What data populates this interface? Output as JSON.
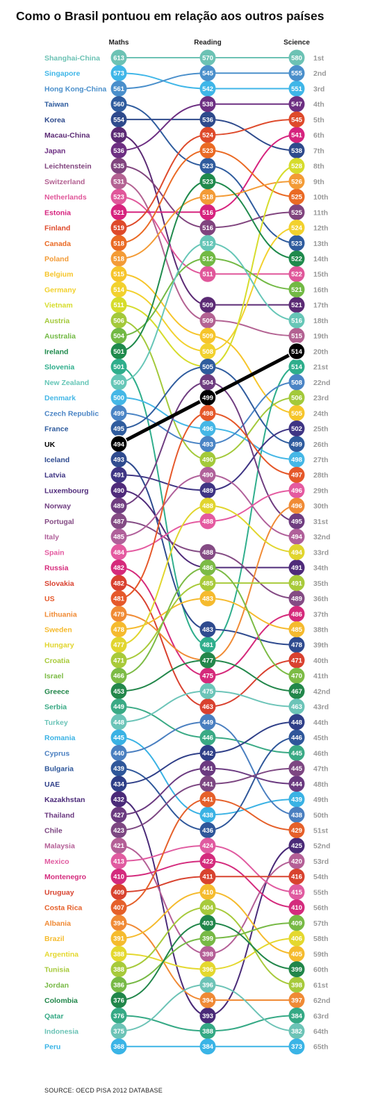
{
  "title": "Como o Brasil pontuou em relação aos outros países",
  "source": "SOURCE: OECD PISA 2012 DATABASE",
  "chart_data": {
    "type": "slope",
    "columns": [
      "Maths",
      "Reading",
      "Science"
    ],
    "highlight": "UK",
    "highlight_color": "#000000",
    "ranks": [
      "1st",
      "2nd",
      "3rd",
      "4th",
      "5th",
      "6th",
      "7th",
      "8th",
      "9th",
      "10th",
      "11th",
      "12th",
      "13th",
      "14th",
      "15th",
      "16th",
      "17th",
      "18th",
      "19th",
      "20th",
      "21st",
      "22nd",
      "23rd",
      "24th",
      "25th",
      "26th",
      "27th",
      "28th",
      "29th",
      "30th",
      "31st",
      "32nd",
      "33rd",
      "34th",
      "35th",
      "36th",
      "37th",
      "38th",
      "39th",
      "40th",
      "41th",
      "42nd",
      "43rd",
      "44th",
      "45th",
      "46th",
      "47th",
      "48th",
      "49th",
      "50th",
      "51st",
      "52nd",
      "53rd",
      "54th",
      "55th",
      "56th",
      "57th",
      "58th",
      "59th",
      "60th",
      "61st",
      "62nd",
      "63rd",
      "64th",
      "65th"
    ],
    "series": [
      {
        "name": "Shanghai-China",
        "color": "#6cc2b4",
        "maths": 613,
        "maths_rank": 1,
        "reading": 570,
        "reading_rank": 1,
        "science": 580,
        "science_rank": 1
      },
      {
        "name": "Singapore",
        "color": "#3fb6e8",
        "maths": 573,
        "maths_rank": 2,
        "reading": 542,
        "reading_rank": 3,
        "science": 551,
        "science_rank": 3
      },
      {
        "name": "Hong Kong-China",
        "color": "#4a8fcb",
        "maths": 561,
        "maths_rank": 3,
        "reading": 545,
        "reading_rank": 2,
        "science": 555,
        "science_rank": 2
      },
      {
        "name": "Taiwan",
        "color": "#2f5c9e",
        "maths": 560,
        "maths_rank": 4,
        "reading": 523,
        "reading_rank": 8,
        "science": 523,
        "science_rank": 13
      },
      {
        "name": "Korea",
        "color": "#2e4a8c",
        "maths": 554,
        "maths_rank": 5,
        "reading": 536,
        "reading_rank": 5,
        "science": 538,
        "science_rank": 7
      },
      {
        "name": "Macau-China",
        "color": "#5b2a74",
        "maths": 538,
        "maths_rank": 6,
        "reading": 509,
        "reading_rank": 17,
        "science": 521,
        "science_rank": 17
      },
      {
        "name": "Japan",
        "color": "#6d2f82",
        "maths": 536,
        "maths_rank": 7,
        "reading": 538,
        "reading_rank": 4,
        "science": 547,
        "science_rank": 4
      },
      {
        "name": "Leichtenstein",
        "color": "#80447e",
        "maths": 535,
        "maths_rank": 8,
        "reading": 516,
        "reading_rank": 12,
        "science": 525,
        "science_rank": 11
      },
      {
        "name": "Switzerland",
        "color": "#b36292",
        "maths": 531,
        "maths_rank": 9,
        "reading": 509,
        "reading_rank": 18,
        "science": 515,
        "science_rank": 19
      },
      {
        "name": "Netherlands",
        "color": "#e0579a",
        "maths": 523,
        "maths_rank": 10,
        "reading": 511,
        "reading_rank": 15,
        "science": 522,
        "science_rank": 15
      },
      {
        "name": "Estonia",
        "color": "#d6237e",
        "maths": 521,
        "maths_rank": 11,
        "reading": 516,
        "reading_rank": 11,
        "science": 541,
        "science_rank": 6
      },
      {
        "name": "Finland",
        "color": "#de4a2b",
        "maths": 519,
        "maths_rank": 12,
        "reading": 524,
        "reading_rank": 6,
        "science": 545,
        "science_rank": 5
      },
      {
        "name": "Canada",
        "color": "#ea6a24",
        "maths": 518,
        "maths_rank": 13,
        "reading": 523,
        "reading_rank": 7,
        "science": 525,
        "science_rank": 10
      },
      {
        "name": "Poland",
        "color": "#f39b36",
        "maths": 518,
        "maths_rank": 14,
        "reading": 518,
        "reading_rank": 10,
        "science": 526,
        "science_rank": 9
      },
      {
        "name": "Belgium",
        "color": "#f6c52b",
        "maths": 515,
        "maths_rank": 15,
        "reading": 509,
        "reading_rank": 19,
        "science": 505,
        "science_rank": 24
      },
      {
        "name": "Germany",
        "color": "#f2d12e",
        "maths": 514,
        "maths_rank": 16,
        "reading": 508,
        "reading_rank": 20,
        "science": 524,
        "science_rank": 12
      },
      {
        "name": "Vietnam",
        "color": "#d6dc2c",
        "maths": 511,
        "maths_rank": 17,
        "reading": 508,
        "reading_rank": 21,
        "science": 528,
        "science_rank": 8
      },
      {
        "name": "Austria",
        "color": "#a3c93a",
        "maths": 506,
        "maths_rank": 18,
        "reading": 490,
        "reading_rank": 27,
        "science": 506,
        "science_rank": 23
      },
      {
        "name": "Australia",
        "color": "#72b944",
        "maths": 504,
        "maths_rank": 19,
        "reading": 512,
        "reading_rank": 14,
        "science": 521,
        "science_rank": 16
      },
      {
        "name": "Ireland",
        "color": "#1f8a4c",
        "maths": 501,
        "maths_rank": 20,
        "reading": 523,
        "reading_rank": 9,
        "science": 522,
        "science_rank": 14
      },
      {
        "name": "Slovenia",
        "color": "#2fae8c",
        "maths": 501,
        "maths_rank": 21,
        "reading": 481,
        "reading_rank": 39,
        "science": 514,
        "science_rank": 21
      },
      {
        "name": "New Zealand",
        "color": "#66c6b7",
        "maths": 500,
        "maths_rank": 22,
        "reading": 512,
        "reading_rank": 13,
        "science": 516,
        "science_rank": 18
      },
      {
        "name": "Denmark",
        "color": "#45b7e6",
        "maths": 500,
        "maths_rank": 23,
        "reading": 496,
        "reading_rank": 25,
        "science": 498,
        "science_rank": 27
      },
      {
        "name": "Czech Republic",
        "color": "#4a84c5",
        "maths": 499,
        "maths_rank": 24,
        "reading": 493,
        "reading_rank": 26,
        "science": 508,
        "science_rank": 22
      },
      {
        "name": "France",
        "color": "#2f5c9e",
        "maths": 495,
        "maths_rank": 25,
        "reading": 505,
        "reading_rank": 21,
        "science": 499,
        "science_rank": 26
      },
      {
        "name": "UK",
        "color": "#000000",
        "maths": 494,
        "maths_rank": 26,
        "reading": 499,
        "reading_rank": 23,
        "science": 514,
        "science_rank": 20
      },
      {
        "name": "Iceland",
        "color": "#2f4b8f",
        "maths": 493,
        "maths_rank": 27,
        "reading": 483,
        "reading_rank": 38,
        "science": 478,
        "science_rank": 39
      },
      {
        "name": "Latvia",
        "color": "#3f3584",
        "maths": 491,
        "maths_rank": 28,
        "reading": 489,
        "reading_rank": 29,
        "science": 502,
        "science_rank": 25
      },
      {
        "name": "Luxembourg",
        "color": "#4f2b7a",
        "maths": 490,
        "maths_rank": 29,
        "reading": 488,
        "reading_rank": 34,
        "science": 491,
        "science_rank": 34
      },
      {
        "name": "Norway",
        "color": "#6f3d80",
        "maths": 489,
        "maths_rank": 30,
        "reading": 504,
        "reading_rank": 22,
        "science": 495,
        "science_rank": 31
      },
      {
        "name": "Portugal",
        "color": "#844b84",
        "maths": 487,
        "maths_rank": 31,
        "reading": 488,
        "reading_rank": 33,
        "science": 489,
        "science_rank": 36
      },
      {
        "name": "Italy",
        "color": "#b0609a",
        "maths": 485,
        "maths_rank": 32,
        "reading": 490,
        "reading_rank": 28,
        "science": 494,
        "science_rank": 32
      },
      {
        "name": "Spain",
        "color": "#e45aa0",
        "maths": 484,
        "maths_rank": 33,
        "reading": 488,
        "reading_rank": 31,
        "science": 496,
        "science_rank": 29
      },
      {
        "name": "Russia",
        "color": "#d52a7b",
        "maths": 482,
        "maths_rank": 34,
        "reading": 475,
        "reading_rank": 41,
        "science": 486,
        "science_rank": 37
      },
      {
        "name": "Slovakia",
        "color": "#d9412f",
        "maths": 482,
        "maths_rank": 35,
        "reading": 463,
        "reading_rank": 43,
        "science": 471,
        "science_rank": 40
      },
      {
        "name": "US",
        "color": "#e5582a",
        "maths": 481,
        "maths_rank": 36,
        "reading": 498,
        "reading_rank": 24,
        "science": 497,
        "science_rank": 28
      },
      {
        "name": "Lithuania",
        "color": "#f08b35",
        "maths": 479,
        "maths_rank": 37,
        "reading": 477,
        "reading_rank": 40,
        "science": 496,
        "science_rank": 30
      },
      {
        "name": "Sweden",
        "color": "#f5ba2e",
        "maths": 478,
        "maths_rank": 38,
        "reading": 483,
        "reading_rank": 36,
        "science": 485,
        "science_rank": 38
      },
      {
        "name": "Hungary",
        "color": "#e1d52e",
        "maths": 477,
        "maths_rank": 39,
        "reading": 488,
        "reading_rank": 30,
        "science": 494,
        "science_rank": 33
      },
      {
        "name": "Croatia",
        "color": "#a8ca3a",
        "maths": 471,
        "maths_rank": 40,
        "reading": 485,
        "reading_rank": 35,
        "science": 491,
        "science_rank": 35
      },
      {
        "name": "Israel",
        "color": "#7cbb45",
        "maths": 466,
        "maths_rank": 41,
        "reading": 486,
        "reading_rank": 34,
        "science": 470,
        "science_rank": 41
      },
      {
        "name": "Greece",
        "color": "#23874b",
        "maths": 453,
        "maths_rank": 42,
        "reading": 477,
        "reading_rank": 40,
        "science": 467,
        "science_rank": 42
      },
      {
        "name": "Serbia",
        "color": "#3aaa85",
        "maths": 449,
        "maths_rank": 43,
        "reading": 446,
        "reading_rank": 45,
        "science": 445,
        "science_rank": 46
      },
      {
        "name": "Turkey",
        "color": "#6cc4b8",
        "maths": 448,
        "maths_rank": 44,
        "reading": 475,
        "reading_rank": 42,
        "science": 463,
        "science_rank": 43
      },
      {
        "name": "Romania",
        "color": "#3ab2e4",
        "maths": 445,
        "maths_rank": 45,
        "reading": 438,
        "reading_rank": 50,
        "science": 439,
        "science_rank": 49
      },
      {
        "name": "Cyprus",
        "color": "#4a7fc0",
        "maths": 440,
        "maths_rank": 46,
        "reading": 449,
        "reading_rank": 44,
        "science": 438,
        "science_rank": 50
      },
      {
        "name": "Bulgaria",
        "color": "#2f579a",
        "maths": 439,
        "maths_rank": 47,
        "reading": 436,
        "reading_rank": 51,
        "science": 446,
        "science_rank": 45
      },
      {
        "name": "UAE",
        "color": "#2f3f88",
        "maths": 434,
        "maths_rank": 48,
        "reading": 442,
        "reading_rank": 46,
        "science": 448,
        "science_rank": 44
      },
      {
        "name": "Kazakhstan",
        "color": "#4a2a78",
        "maths": 432,
        "maths_rank": 49,
        "reading": 393,
        "reading_rank": 63,
        "science": 425,
        "science_rank": 52
      },
      {
        "name": "Thailand",
        "color": "#6b3a80",
        "maths": 427,
        "maths_rank": 50,
        "reading": 441,
        "reading_rank": 47,
        "science": 444,
        "science_rank": 48
      },
      {
        "name": "Chile",
        "color": "#7d4782",
        "maths": 423,
        "maths_rank": 51,
        "reading": 441,
        "reading_rank": 48,
        "science": 445,
        "science_rank": 47
      },
      {
        "name": "Malaysia",
        "color": "#b45f96",
        "maths": 421,
        "maths_rank": 52,
        "reading": 398,
        "reading_rank": 59,
        "science": 420,
        "science_rank": 53
      },
      {
        "name": "Mexico",
        "color": "#e05ba0",
        "maths": 413,
        "maths_rank": 53,
        "reading": 424,
        "reading_rank": 52,
        "science": 415,
        "science_rank": 55
      },
      {
        "name": "Montenegro",
        "color": "#d42b7d",
        "maths": 410,
        "maths_rank": 54,
        "reading": 422,
        "reading_rank": 53,
        "science": 410,
        "science_rank": 56
      },
      {
        "name": "Uruguay",
        "color": "#d8432f",
        "maths": 409,
        "maths_rank": 55,
        "reading": 411,
        "reading_rank": 54,
        "science": 416,
        "science_rank": 54
      },
      {
        "name": "Costa Rica",
        "color": "#e5602a",
        "maths": 407,
        "maths_rank": 56,
        "reading": 441,
        "reading_rank": 49,
        "science": 429,
        "science_rank": 51
      },
      {
        "name": "Albania",
        "color": "#f08a35",
        "maths": 394,
        "maths_rank": 57,
        "reading": 394,
        "reading_rank": 62,
        "science": 397,
        "science_rank": 62
      },
      {
        "name": "Brazil",
        "color": "#f5bb2e",
        "maths": 391,
        "maths_rank": 58,
        "reading": 410,
        "reading_rank": 55,
        "science": 405,
        "science_rank": 59
      },
      {
        "name": "Argentina",
        "color": "#e4d82f",
        "maths": 388,
        "maths_rank": 59,
        "reading": 396,
        "reading_rank": 60,
        "science": 406,
        "science_rank": 58
      },
      {
        "name": "Tunisia",
        "color": "#a7ca3b",
        "maths": 388,
        "maths_rank": 60,
        "reading": 404,
        "reading_rank": 56,
        "science": 398,
        "science_rank": 61
      },
      {
        "name": "Jordan",
        "color": "#77b945",
        "maths": 386,
        "maths_rank": 61,
        "reading": 399,
        "reading_rank": 58,
        "science": 409,
        "science_rank": 57
      },
      {
        "name": "Colombia",
        "color": "#21864a",
        "maths": 376,
        "maths_rank": 62,
        "reading": 403,
        "reading_rank": 57,
        "science": 399,
        "science_rank": 60
      },
      {
        "name": "Qatar",
        "color": "#35a985",
        "maths": 376,
        "maths_rank": 63,
        "reading": 388,
        "reading_rank": 64,
        "science": 384,
        "science_rank": 63
      },
      {
        "name": "Indonesia",
        "color": "#6cc3b6",
        "maths": 375,
        "maths_rank": 64,
        "reading": 396,
        "reading_rank": 61,
        "science": 382,
        "science_rank": 64
      },
      {
        "name": "Peru",
        "color": "#3ab4e6",
        "maths": 368,
        "maths_rank": 65,
        "reading": 384,
        "reading_rank": 65,
        "science": 373,
        "science_rank": 65
      }
    ]
  }
}
